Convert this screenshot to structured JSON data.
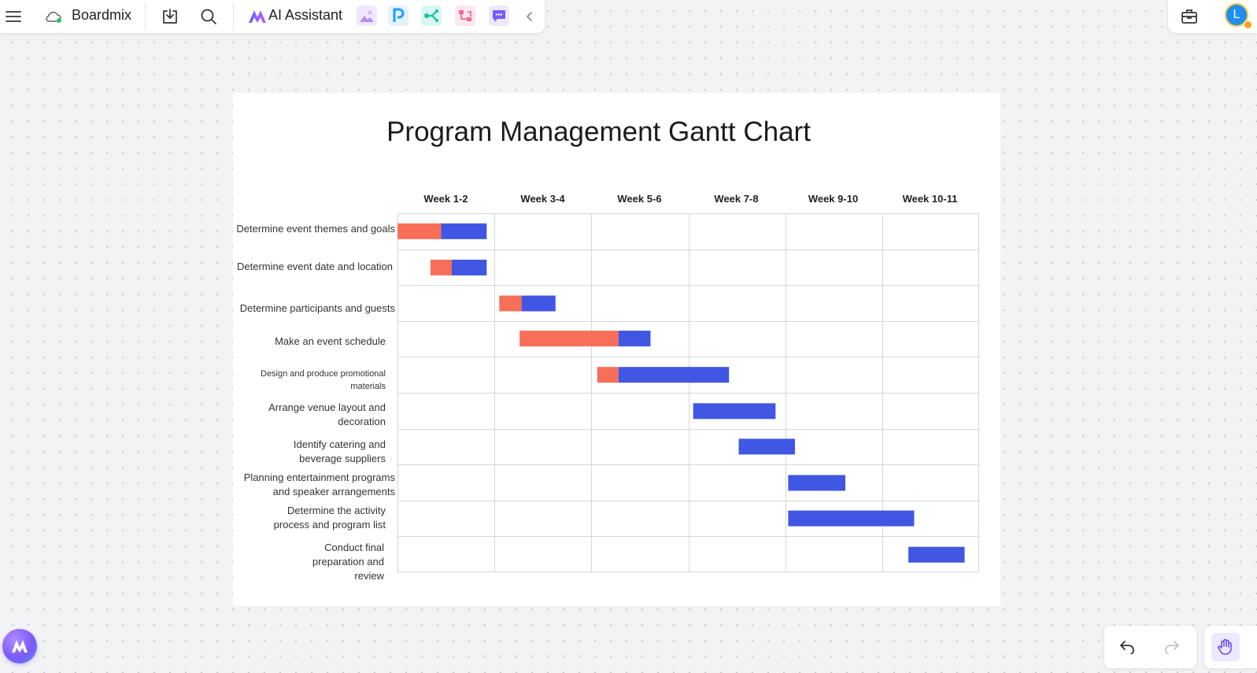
{
  "toolbar": {
    "brand_name": "Boardmix",
    "ai_assistant_label": "AI Assistant",
    "icons": [
      "menu-icon",
      "cloud-sync-icon",
      "download-icon",
      "search-icon",
      "ai-logo-icon",
      "ai-image-icon",
      "ai-presentation-icon",
      "ai-mindmap-icon",
      "ai-flowchart-icon",
      "ai-chat-icon",
      "collapse-chevron-icon"
    ],
    "tile_colors": {
      "image": "#f1e8ff",
      "presentation": "#e3f2ff",
      "mindmap": "#d9f7f2",
      "flowchart": "#ffe6ef",
      "chat": "#ece8fd"
    }
  },
  "rightbar": {
    "avatar_initial": "L",
    "icons": [
      "toolbox-icon",
      "user-avatar"
    ]
  },
  "chart_data": {
    "type": "gantt",
    "title": "Program Management Gantt Chart",
    "columns": [
      "Week 1-2",
      "Week 3-4",
      "Week 5-6",
      "Week 7-8",
      "Week 9-10",
      "Week 10-11"
    ],
    "tasks": [
      {
        "name": "Determine event themes and goals",
        "progress_start": 0.0,
        "progress_end": 0.45,
        "remaining_end": 0.92
      },
      {
        "name": "Determine event date and location",
        "progress_start": 0.34,
        "progress_end": 0.56,
        "remaining_end": 0.92
      },
      {
        "name": "Determine participants and guests",
        "progress_start": 1.05,
        "progress_end": 1.28,
        "remaining_end": 1.63
      },
      {
        "name": "Make an event schedule",
        "progress_start": 1.26,
        "progress_end": 2.28,
        "remaining_end": 2.61
      },
      {
        "name": "Design and produce promotional materials",
        "progress_start": 2.06,
        "progress_end": 2.28,
        "remaining_end": 3.42
      },
      {
        "name": "Arrange venue layout and decoration",
        "progress_start": 3.05,
        "progress_end": 3.05,
        "remaining_end": 3.9
      },
      {
        "name": "Identify catering and beverage suppliers",
        "progress_start": 3.52,
        "progress_end": 3.52,
        "remaining_end": 4.1
      },
      {
        "name": "Planning entertainment programs and speaker arrangements",
        "progress_start": 4.03,
        "progress_end": 4.03,
        "remaining_end": 4.62
      },
      {
        "name": "Determine the activity process and program list",
        "progress_start": 4.03,
        "progress_end": 4.03,
        "remaining_end": 5.33
      },
      {
        "name": "Conduct final preparation and review",
        "progress_start": 5.27,
        "progress_end": 5.27,
        "remaining_end": 5.85
      }
    ],
    "colors": {
      "done": "#f76f58",
      "remaining": "#4057e3",
      "grid": "#d6d6d6"
    }
  },
  "canvas_controls": {
    "icons": [
      "boardmix-ai-icon",
      "undo-icon",
      "redo-icon",
      "hand-tool-icon"
    ]
  }
}
